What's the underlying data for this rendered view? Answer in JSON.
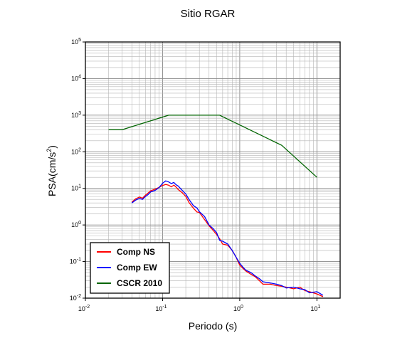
{
  "chart_data": {
    "type": "line",
    "title": "Sitio RGAR",
    "xlabel": "Periodo (s)",
    "ylabel_base": "PSA(cm/s",
    "ylabel_sup": "2",
    "ylabel_end": ")",
    "x_scale": "log",
    "y_scale": "log",
    "xlim": [
      0.01,
      20
    ],
    "ylim": [
      0.01,
      100000
    ],
    "x_ticks": [
      {
        "base": "10",
        "exp": "-2"
      },
      {
        "base": "10",
        "exp": "-1"
      },
      {
        "base": "10",
        "exp": "0"
      },
      {
        "base": "10",
        "exp": "1"
      }
    ],
    "y_ticks": [
      {
        "base": "10",
        "exp": "-2"
      },
      {
        "base": "10",
        "exp": "-1"
      },
      {
        "base": "10",
        "exp": "0"
      },
      {
        "base": "10",
        "exp": "1"
      },
      {
        "base": "10",
        "exp": "2"
      },
      {
        "base": "10",
        "exp": "3"
      },
      {
        "base": "10",
        "exp": "4"
      },
      {
        "base": "10",
        "exp": "5"
      }
    ],
    "grid": true,
    "legend_position": "bottom-left",
    "series": [
      {
        "name": "Comp NS",
        "color": "#ff0000",
        "points": [
          [
            0.04,
            4.2
          ],
          [
            0.045,
            5.2
          ],
          [
            0.05,
            5.8
          ],
          [
            0.055,
            5.4
          ],
          [
            0.06,
            6.5
          ],
          [
            0.065,
            7.5
          ],
          [
            0.07,
            8.6
          ],
          [
            0.08,
            9.5
          ],
          [
            0.09,
            10.6
          ],
          [
            0.1,
            12.0
          ],
          [
            0.11,
            12.8
          ],
          [
            0.12,
            12.2
          ],
          [
            0.13,
            11.0
          ],
          [
            0.14,
            12.3
          ],
          [
            0.15,
            10.8
          ],
          [
            0.16,
            9.2
          ],
          [
            0.18,
            7.6
          ],
          [
            0.2,
            6.0
          ],
          [
            0.22,
            4.1
          ],
          [
            0.25,
            2.9
          ],
          [
            0.28,
            2.25
          ],
          [
            0.3,
            2.2
          ],
          [
            0.35,
            1.4
          ],
          [
            0.4,
            0.95
          ],
          [
            0.45,
            0.72
          ],
          [
            0.5,
            0.55
          ],
          [
            0.55,
            0.42
          ],
          [
            0.6,
            0.3
          ],
          [
            0.7,
            0.28
          ],
          [
            0.8,
            0.2
          ],
          [
            0.9,
            0.13
          ],
          [
            1.0,
            0.08
          ],
          [
            1.1,
            0.065
          ],
          [
            1.2,
            0.055
          ],
          [
            1.4,
            0.045
          ],
          [
            1.6,
            0.038
          ],
          [
            1.8,
            0.03
          ],
          [
            2.0,
            0.024
          ],
          [
            2.5,
            0.024
          ],
          [
            3.0,
            0.022
          ],
          [
            3.5,
            0.021
          ],
          [
            4.0,
            0.02
          ],
          [
            5.0,
            0.018
          ],
          [
            6.0,
            0.02
          ],
          [
            7.0,
            0.016
          ],
          [
            8.0,
            0.015
          ],
          [
            10.0,
            0.013
          ],
          [
            12.0,
            0.011
          ]
        ]
      },
      {
        "name": "Comp EW",
        "color": "#0000ff",
        "points": [
          [
            0.04,
            4.0
          ],
          [
            0.045,
            4.8
          ],
          [
            0.05,
            5.3
          ],
          [
            0.055,
            5.0
          ],
          [
            0.06,
            6.0
          ],
          [
            0.065,
            6.8
          ],
          [
            0.07,
            8.0
          ],
          [
            0.08,
            8.8
          ],
          [
            0.09,
            10.5
          ],
          [
            0.1,
            13.8
          ],
          [
            0.11,
            16.0
          ],
          [
            0.12,
            15.0
          ],
          [
            0.13,
            13.5
          ],
          [
            0.14,
            14.5
          ],
          [
            0.15,
            12.5
          ],
          [
            0.16,
            11.5
          ],
          [
            0.18,
            8.8
          ],
          [
            0.2,
            7.0
          ],
          [
            0.22,
            5.0
          ],
          [
            0.25,
            3.4
          ],
          [
            0.28,
            2.9
          ],
          [
            0.3,
            2.3
          ],
          [
            0.35,
            1.7
          ],
          [
            0.4,
            1.0
          ],
          [
            0.45,
            0.8
          ],
          [
            0.5,
            0.62
          ],
          [
            0.55,
            0.38
          ],
          [
            0.6,
            0.36
          ],
          [
            0.7,
            0.3
          ],
          [
            0.8,
            0.2
          ],
          [
            0.9,
            0.13
          ],
          [
            1.0,
            0.09
          ],
          [
            1.1,
            0.07
          ],
          [
            1.2,
            0.058
          ],
          [
            1.4,
            0.05
          ],
          [
            1.6,
            0.04
          ],
          [
            1.8,
            0.034
          ],
          [
            2.0,
            0.028
          ],
          [
            2.5,
            0.026
          ],
          [
            3.0,
            0.024
          ],
          [
            3.5,
            0.022
          ],
          [
            4.0,
            0.019
          ],
          [
            5.0,
            0.02
          ],
          [
            6.0,
            0.018
          ],
          [
            7.0,
            0.017
          ],
          [
            8.0,
            0.014
          ],
          [
            10.0,
            0.015
          ],
          [
            12.0,
            0.012
          ]
        ]
      },
      {
        "name": "CSCR 2010",
        "color": "#006400",
        "points": [
          [
            0.02,
            400
          ],
          [
            0.03,
            400
          ],
          [
            0.12,
            1000
          ],
          [
            0.55,
            1000
          ],
          [
            3.5,
            150
          ],
          [
            10.0,
            20
          ]
        ]
      }
    ]
  }
}
